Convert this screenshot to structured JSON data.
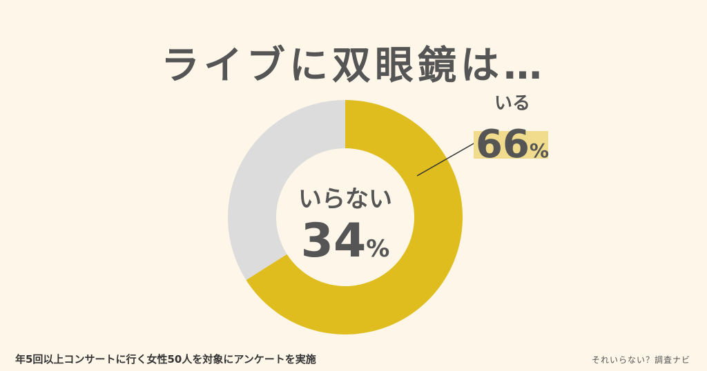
{
  "title": "ライブに双眼鏡は…",
  "footnote": "年5回以上コンサートに行く女性50人を対象にアンケートを実施",
  "credit": "それいらない？調査ナビ",
  "colors": {
    "yes": "#dfbd1e",
    "no": "#dcdcdc",
    "highlight": "#f0dc8c",
    "text": "#555555",
    "background": "#fdf6e9"
  },
  "chart_data": {
    "type": "pie",
    "title": "ライブに双眼鏡は…",
    "slices": [
      {
        "label": "いる",
        "value": 66,
        "display": "66"
      },
      {
        "label": "いらない",
        "value": 34,
        "display": "34"
      }
    ],
    "unit": "%"
  }
}
